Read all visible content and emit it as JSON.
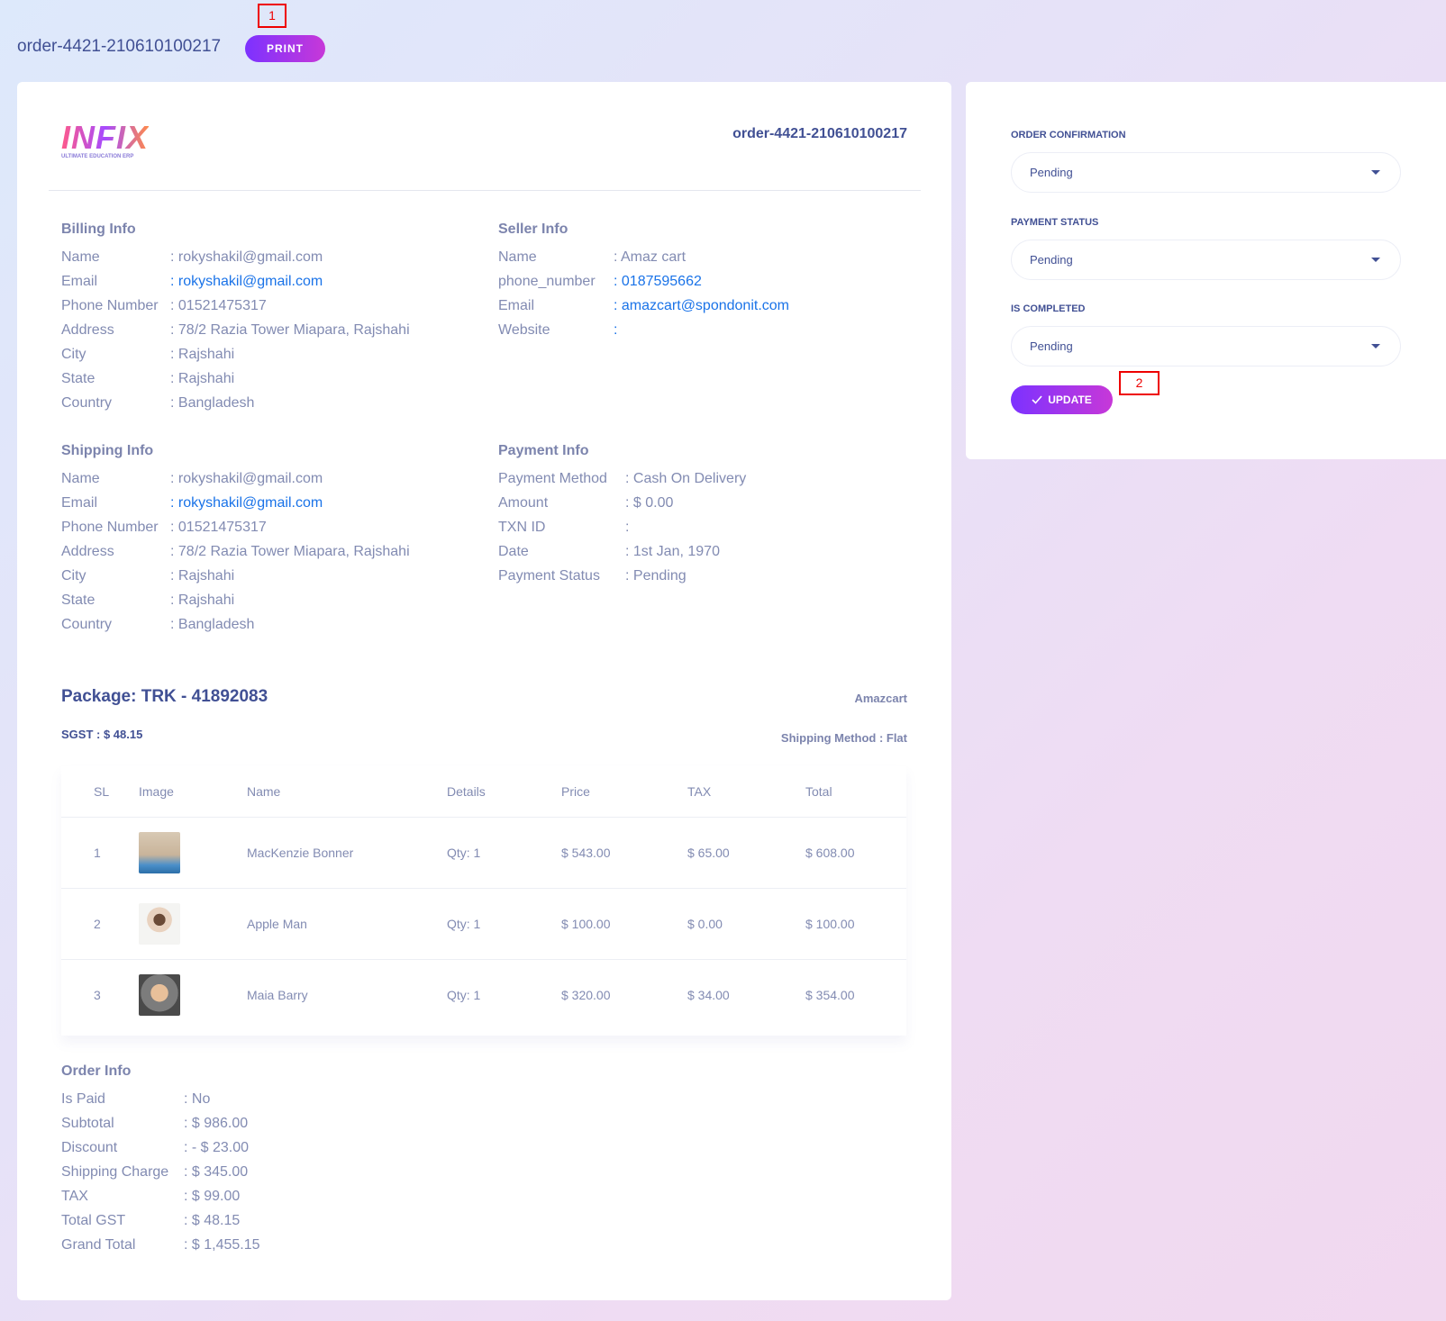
{
  "header": {
    "title": "order-4421-210610100217",
    "print": "PRINT"
  },
  "annotations": [
    "1",
    "2"
  ],
  "invoice": {
    "logo": {
      "brand": "INFIX",
      "tagline": "ULTIMATE EDUCATION ERP"
    },
    "order_number": "order-4421-210610100217",
    "sections": [
      {
        "heading": "Billing Info",
        "rows": [
          {
            "label": "Name",
            "value": ": rokyshakil@gmail.com"
          },
          {
            "label": "Email",
            "value": ": rokyshakil@gmail.com",
            "link": true
          },
          {
            "label": "Phone Number",
            "value": ": 01521475317"
          },
          {
            "label": "Address",
            "value": ": 78/2 Razia Tower Miapara, Rajshahi"
          },
          {
            "label": "City",
            "value": ": Rajshahi"
          },
          {
            "label": "State",
            "value": ": Rajshahi"
          },
          {
            "label": "Country",
            "value": ": Bangladesh"
          }
        ]
      },
      {
        "heading": "Seller Info",
        "rows": [
          {
            "label": "Name",
            "value": ": Amaz cart"
          },
          {
            "label": "phone_number",
            "value": ": 0187595662",
            "link": true
          },
          {
            "label": "Email",
            "value": ": amazcart@spondonit.com",
            "link": true
          },
          {
            "label": "Website",
            "value": ":",
            "link": true
          }
        ]
      },
      {
        "heading": "Shipping Info",
        "rows": [
          {
            "label": "Name",
            "value": ": rokyshakil@gmail.com"
          },
          {
            "label": "Email",
            "value": ": rokyshakil@gmail.com",
            "link": true
          },
          {
            "label": "Phone Number",
            "value": ": 01521475317"
          },
          {
            "label": "Address",
            "value": ": 78/2 Razia Tower Miapara, Rajshahi"
          },
          {
            "label": "City",
            "value": ": Rajshahi"
          },
          {
            "label": "State",
            "value": ": Rajshahi"
          },
          {
            "label": "Country",
            "value": ": Bangladesh"
          }
        ]
      },
      {
        "heading": "Payment Info",
        "rows": [
          {
            "label": "Payment Method",
            "value": ": Cash On Delivery"
          },
          {
            "label": "Amount",
            "value": ": $ 0.00"
          },
          {
            "label": "TXN ID",
            "value": ":"
          },
          {
            "label": "Date",
            "value": ": 1st Jan, 1970"
          },
          {
            "label": "Payment Status",
            "value": ": Pending"
          }
        ]
      }
    ],
    "package": {
      "title": "Package: TRK - 41892083",
      "seller": "Amazcart",
      "tax": "SGST : $ 48.15",
      "shipping_method": "Shipping Method : Flat"
    },
    "table": {
      "columns": [
        "SL",
        "Image",
        "Name",
        "Details",
        "Price",
        "TAX",
        "Total"
      ],
      "rows": [
        [
          "1",
          "MacKenzie Bonner",
          "Qty: 1",
          "$ 543.00",
          "$ 65.00",
          "$ 608.00"
        ],
        [
          "2",
          "Apple Man",
          "Qty: 1",
          "$ 100.00",
          "$ 0.00",
          "$ 100.00"
        ],
        [
          "3",
          "Maia Barry",
          "Qty: 1",
          "$ 320.00",
          "$ 34.00",
          "$ 354.00"
        ]
      ]
    },
    "order_info": {
      "heading": "Order Info",
      "rows": [
        {
          "label": "Is Paid",
          "value": ": No"
        },
        {
          "label": "Subtotal",
          "value": ": $ 986.00"
        },
        {
          "label": "Discount",
          "value": ": - $ 23.00"
        },
        {
          "label": "Shipping Charge",
          "value": ": $ 345.00"
        },
        {
          "label": "TAX",
          "value": ": $ 99.00"
        },
        {
          "label": "Total GST",
          "value": ": $ 48.15"
        },
        {
          "label": "Grand Total",
          "value": ": $ 1,455.15"
        }
      ]
    }
  },
  "status_panel": {
    "fields": [
      {
        "label": "ORDER CONFIRMATION",
        "value": "Pending"
      },
      {
        "label": "PAYMENT STATUS",
        "value": "Pending"
      },
      {
        "label": "IS COMPLETED",
        "value": "Pending"
      }
    ],
    "update": "UPDATE"
  }
}
